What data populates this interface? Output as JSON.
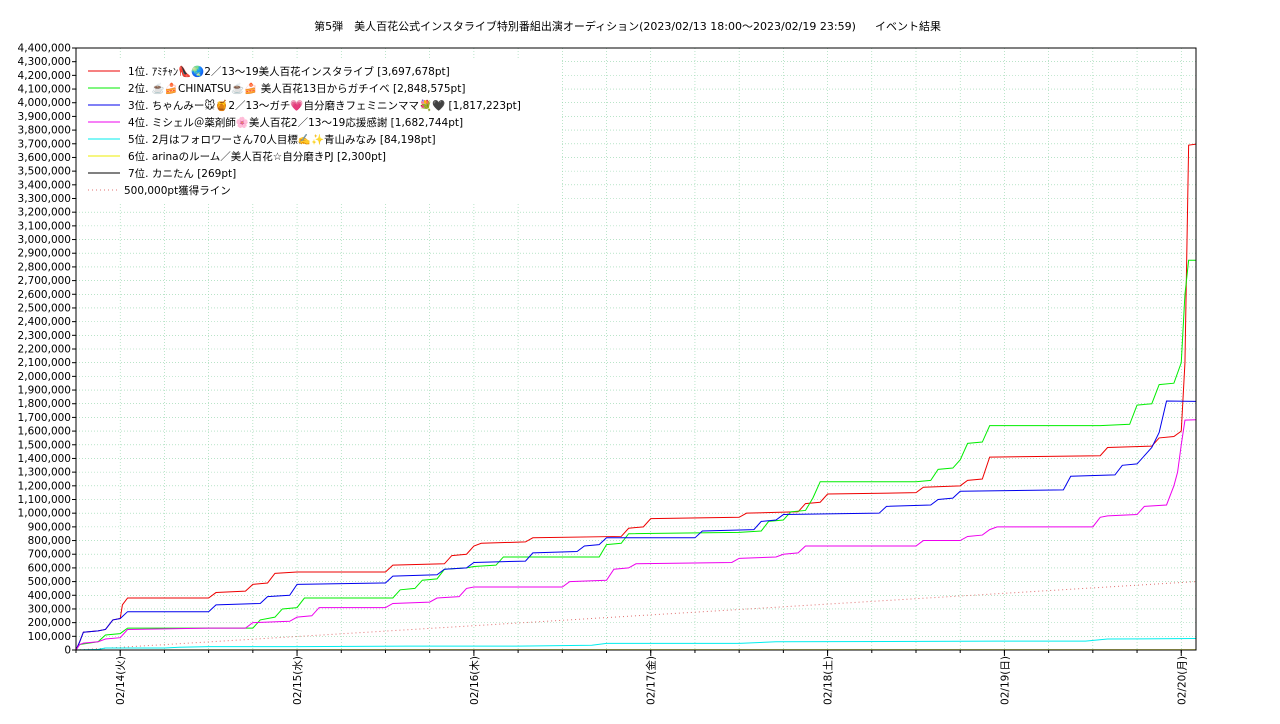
{
  "chart_data": {
    "type": "line",
    "title": "第5弾　美人百花公式インスタライブ特別番組出演オーディション(2023/02/13 18:00〜2023/02/19 23:59)",
    "subtitle": "イベント結果",
    "xlabel": "",
    "ylabel": "",
    "x_unit": "hours since 2023/02/13 18:00",
    "xlim": [
      0,
      152
    ],
    "ylim": [
      0,
      4400000
    ],
    "y_ticks": [
      0,
      100000,
      200000,
      300000,
      400000,
      500000,
      600000,
      700000,
      800000,
      900000,
      1000000,
      1100000,
      1200000,
      1300000,
      1400000,
      1500000,
      1600000,
      1700000,
      1800000,
      1900000,
      2000000,
      2100000,
      2200000,
      2300000,
      2400000,
      2500000,
      2600000,
      2700000,
      2800000,
      2900000,
      3000000,
      3100000,
      3200000,
      3300000,
      3400000,
      3500000,
      3600000,
      3700000,
      3800000,
      3900000,
      4000000,
      4100000,
      4200000,
      4300000,
      4400000
    ],
    "y_tick_labels": [
      "0",
      "100,000",
      "200,000",
      "300,000",
      "400,000",
      "500,000",
      "600,000",
      "700,000",
      "800,000",
      "900,000",
      "1,000,000",
      "1,100,000",
      "1,200,000",
      "1,300,000",
      "1,400,000",
      "1,500,000",
      "1,600,000",
      "1,700,000",
      "1,800,000",
      "1,900,000",
      "2,000,000",
      "2,100,000",
      "2,200,000",
      "2,300,000",
      "2,400,000",
      "2,500,000",
      "2,600,000",
      "2,700,000",
      "2,800,000",
      "2,900,000",
      "3,000,000",
      "3,100,000",
      "3,200,000",
      "3,300,000",
      "3,400,000",
      "3,500,000",
      "3,600,000",
      "3,700,000",
      "3,800,000",
      "3,900,000",
      "4,000,000",
      "4,100,000",
      "4,200,000",
      "4,300,000",
      "4,400,000"
    ],
    "x_ticks": [
      6,
      30,
      54,
      78,
      102,
      126,
      150
    ],
    "x_tick_labels": [
      "02/14(火)",
      "02/15(水)",
      "02/16(木)",
      "02/17(金)",
      "02/18(土)",
      "02/19(日)",
      "02/20(月)"
    ],
    "grid": true,
    "legend_position": "top-left",
    "series": [
      {
        "name": "1位. ｱﾐﾁｬﾝ👠🌏2／13〜19美人百花インスタライブ [3,697,678pt]",
        "color": "#ee0000",
        "points": [
          [
            0,
            0
          ],
          [
            0.5,
            60000
          ],
          [
            1,
            130000
          ],
          [
            3,
            140000
          ],
          [
            4,
            150000
          ],
          [
            5,
            220000
          ],
          [
            6,
            230000
          ],
          [
            6.3,
            330000
          ],
          [
            7,
            380000
          ],
          [
            18,
            380000
          ],
          [
            19,
            420000
          ],
          [
            23,
            430000
          ],
          [
            24,
            480000
          ],
          [
            26,
            490000
          ],
          [
            27,
            560000
          ],
          [
            30,
            570000
          ],
          [
            42,
            570000
          ],
          [
            43,
            620000
          ],
          [
            50,
            630000
          ],
          [
            51,
            690000
          ],
          [
            53,
            700000
          ],
          [
            54,
            760000
          ],
          [
            55,
            780000
          ],
          [
            61,
            790000
          ],
          [
            62,
            820000
          ],
          [
            74,
            830000
          ],
          [
            75,
            890000
          ],
          [
            77,
            900000
          ],
          [
            78,
            960000
          ],
          [
            90,
            970000
          ],
          [
            91,
            1000000
          ],
          [
            98,
            1010000
          ],
          [
            99,
            1070000
          ],
          [
            101,
            1080000
          ],
          [
            102,
            1140000
          ],
          [
            114,
            1150000
          ],
          [
            115,
            1190000
          ],
          [
            120,
            1200000
          ],
          [
            121,
            1240000
          ],
          [
            123,
            1250000
          ],
          [
            124,
            1410000
          ],
          [
            139,
            1420000
          ],
          [
            140,
            1480000
          ],
          [
            146,
            1490000
          ],
          [
            147,
            1550000
          ],
          [
            149,
            1560000
          ],
          [
            150,
            1600000
          ],
          [
            150.5,
            2100000
          ],
          [
            151,
            3690000
          ],
          [
            152,
            3697678
          ]
        ]
      },
      {
        "name": "2位. ☕️🍰CHINATSU☕️🍰 美人百花13日からガチイベ [2,848,575pt]",
        "color": "#00ee00",
        "points": [
          [
            0,
            0
          ],
          [
            0.5,
            40000
          ],
          [
            3,
            60000
          ],
          [
            4,
            110000
          ],
          [
            6,
            120000
          ],
          [
            7,
            160000
          ],
          [
            24,
            160000
          ],
          [
            25,
            220000
          ],
          [
            27,
            240000
          ],
          [
            28,
            300000
          ],
          [
            30,
            310000
          ],
          [
            31,
            380000
          ],
          [
            43,
            380000
          ],
          [
            44,
            440000
          ],
          [
            46,
            450000
          ],
          [
            47,
            510000
          ],
          [
            49,
            520000
          ],
          [
            50,
            590000
          ],
          [
            53,
            600000
          ],
          [
            54,
            610000
          ],
          [
            57,
            620000
          ],
          [
            58,
            680000
          ],
          [
            71,
            680000
          ],
          [
            72,
            770000
          ],
          [
            74,
            780000
          ],
          [
            75,
            850000
          ],
          [
            90,
            860000
          ],
          [
            93,
            870000
          ],
          [
            94,
            940000
          ],
          [
            96,
            950000
          ],
          [
            97,
            1010000
          ],
          [
            99,
            1020000
          ],
          [
            100,
            1110000
          ],
          [
            101,
            1230000
          ],
          [
            114,
            1230000
          ],
          [
            116,
            1240000
          ],
          [
            117,
            1320000
          ],
          [
            119,
            1330000
          ],
          [
            120,
            1390000
          ],
          [
            121,
            1510000
          ],
          [
            123,
            1520000
          ],
          [
            124,
            1640000
          ],
          [
            139,
            1640000
          ],
          [
            143,
            1650000
          ],
          [
            144,
            1790000
          ],
          [
            146,
            1800000
          ],
          [
            147,
            1940000
          ],
          [
            149,
            1950000
          ],
          [
            150,
            2100000
          ],
          [
            150.5,
            2600000
          ],
          [
            151,
            2848575
          ],
          [
            152,
            2848575
          ]
        ]
      },
      {
        "name": "3位. ちゃんみー🐭🍯2／13〜ガチ💗自分磨きフェミニンママ💐🖤 [1,817,223pt]",
        "color": "#0000ee",
        "points": [
          [
            0,
            0
          ],
          [
            0.5,
            60000
          ],
          [
            1,
            130000
          ],
          [
            3,
            140000
          ],
          [
            4,
            150000
          ],
          [
            5,
            220000
          ],
          [
            6,
            230000
          ],
          [
            7,
            280000
          ],
          [
            18,
            280000
          ],
          [
            19,
            330000
          ],
          [
            25,
            340000
          ],
          [
            26,
            390000
          ],
          [
            29,
            400000
          ],
          [
            30,
            480000
          ],
          [
            42,
            490000
          ],
          [
            43,
            540000
          ],
          [
            49,
            550000
          ],
          [
            50,
            590000
          ],
          [
            53,
            600000
          ],
          [
            54,
            640000
          ],
          [
            61,
            650000
          ],
          [
            62,
            710000
          ],
          [
            68,
            720000
          ],
          [
            69,
            760000
          ],
          [
            71,
            770000
          ],
          [
            72,
            820000
          ],
          [
            84,
            820000
          ],
          [
            85,
            870000
          ],
          [
            92,
            880000
          ],
          [
            93,
            940000
          ],
          [
            95,
            950000
          ],
          [
            96,
            990000
          ],
          [
            109,
            1000000
          ],
          [
            110,
            1050000
          ],
          [
            116,
            1060000
          ],
          [
            117,
            1100000
          ],
          [
            119,
            1110000
          ],
          [
            120,
            1160000
          ],
          [
            134,
            1170000
          ],
          [
            135,
            1270000
          ],
          [
            141,
            1280000
          ],
          [
            142,
            1350000
          ],
          [
            144,
            1360000
          ],
          [
            145,
            1420000
          ],
          [
            146,
            1480000
          ],
          [
            147,
            1590000
          ],
          [
            148,
            1820000
          ],
          [
            152,
            1817223
          ]
        ]
      },
      {
        "name": "4位. ミシェル＠薬剤師🌸美人百花2／13〜19応援感謝 [1,682,744pt]",
        "color": "#ee00ee",
        "points": [
          [
            0,
            0
          ],
          [
            0.5,
            40000
          ],
          [
            1,
            50000
          ],
          [
            3,
            60000
          ],
          [
            4,
            80000
          ],
          [
            6,
            90000
          ],
          [
            7,
            150000
          ],
          [
            18,
            160000
          ],
          [
            23,
            160000
          ],
          [
            24,
            200000
          ],
          [
            29,
            210000
          ],
          [
            30,
            240000
          ],
          [
            32,
            250000
          ],
          [
            33,
            310000
          ],
          [
            42,
            310000
          ],
          [
            43,
            340000
          ],
          [
            48,
            350000
          ],
          [
            49,
            380000
          ],
          [
            52,
            390000
          ],
          [
            53,
            450000
          ],
          [
            54,
            460000
          ],
          [
            66,
            460000
          ],
          [
            67,
            500000
          ],
          [
            72,
            510000
          ],
          [
            73,
            590000
          ],
          [
            75,
            600000
          ],
          [
            76,
            630000
          ],
          [
            89,
            640000
          ],
          [
            90,
            670000
          ],
          [
            95,
            680000
          ],
          [
            96,
            700000
          ],
          [
            98,
            710000
          ],
          [
            99,
            760000
          ],
          [
            114,
            760000
          ],
          [
            115,
            800000
          ],
          [
            120,
            800000
          ],
          [
            121,
            830000
          ],
          [
            123,
            840000
          ],
          [
            124,
            880000
          ],
          [
            125,
            900000
          ],
          [
            138,
            900000
          ],
          [
            139,
            970000
          ],
          [
            140,
            980000
          ],
          [
            144,
            990000
          ],
          [
            145,
            1050000
          ],
          [
            148,
            1060000
          ],
          [
            149,
            1200000
          ],
          [
            149.5,
            1300000
          ],
          [
            150,
            1500000
          ],
          [
            150.5,
            1680000
          ],
          [
            152,
            1682744
          ]
        ]
      },
      {
        "name": "5位. 2月はフォロワーさん70人目標✍️✨青山みなみ [84,198pt]",
        "color": "#00eeee",
        "points": [
          [
            0,
            0
          ],
          [
            3,
            5000
          ],
          [
            4,
            15000
          ],
          [
            12,
            15000
          ],
          [
            14,
            20000
          ],
          [
            18,
            25000
          ],
          [
            30,
            25000
          ],
          [
            45,
            28000
          ],
          [
            60,
            28000
          ],
          [
            70,
            35000
          ],
          [
            72,
            48000
          ],
          [
            90,
            48000
          ],
          [
            95,
            60000
          ],
          [
            125,
            65000
          ],
          [
            137,
            65000
          ],
          [
            140,
            80000
          ],
          [
            152,
            84198
          ]
        ]
      },
      {
        "name": "6位. arinaのルーム／美人百花☆自分磨きPJ [2,300pt]",
        "color": "#eeee00",
        "points": [
          [
            0,
            0
          ],
          [
            20,
            1200
          ],
          [
            60,
            1800
          ],
          [
            100,
            2100
          ],
          [
            152,
            2300
          ]
        ]
      },
      {
        "name": "7位. カニたん [269pt]",
        "color": "#000000",
        "points": [
          [
            0,
            0
          ],
          [
            40,
            150
          ],
          [
            100,
            230
          ],
          [
            152,
            269
          ]
        ]
      },
      {
        "name": "500,000pt獲得ライン",
        "color": "#e07070",
        "dashed": true,
        "points": [
          [
            0,
            0
          ],
          [
            152,
            500000
          ]
        ]
      }
    ]
  }
}
